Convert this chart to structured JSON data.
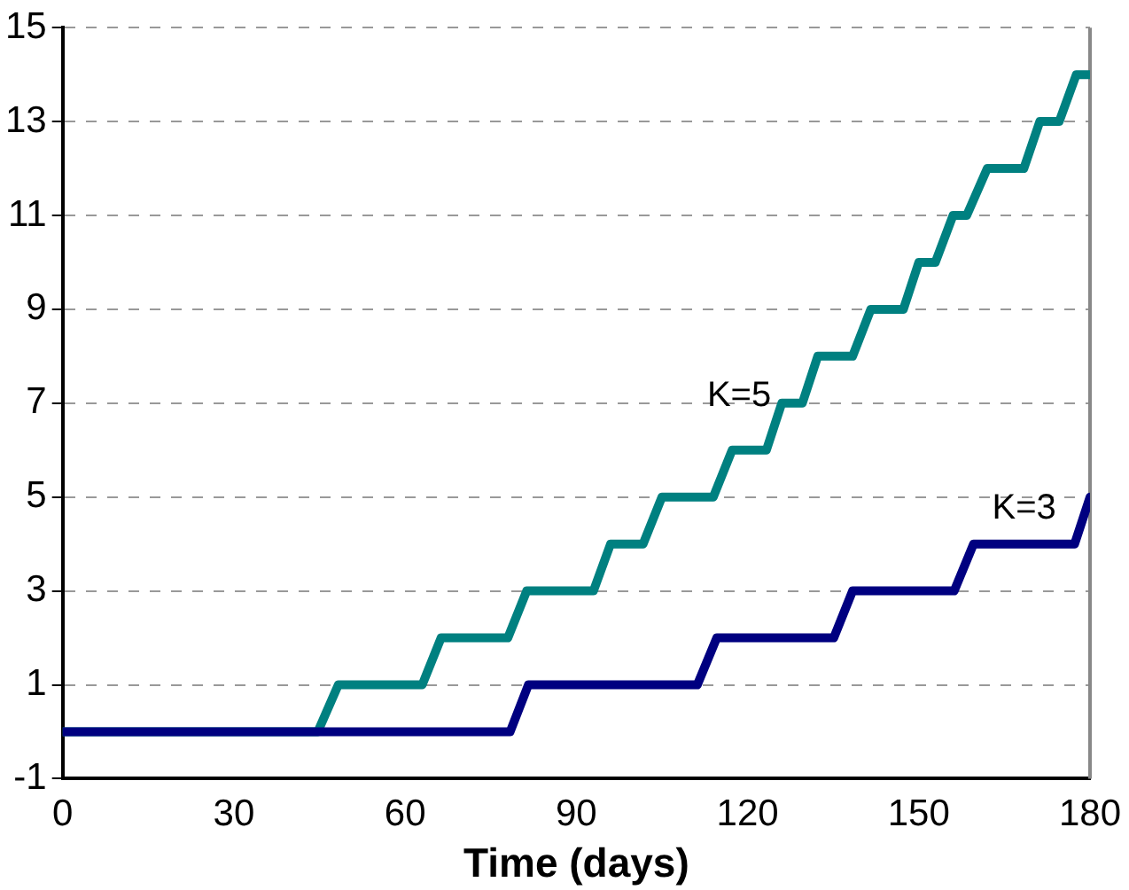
{
  "chart_data": {
    "type": "line",
    "xlabel": "Time (days)",
    "series": [
      {
        "name": "K=3",
        "color": "#000080",
        "x": [
          0,
          75,
          78.4,
          81.6,
          111.2,
          114.6,
          135.1,
          138.4,
          156.2,
          159.6,
          177.3,
          180
        ],
        "values": [
          0,
          0,
          0,
          1,
          1,
          2,
          2,
          3,
          3,
          4,
          4,
          5
        ]
      },
      {
        "name": "K=5",
        "color": "#008080",
        "x": [
          0,
          44.7,
          48.3,
          63,
          66.3,
          78,
          81.3,
          93,
          96,
          101.7,
          105,
          114,
          117.3,
          123.3,
          126,
          129.6,
          132.3,
          138.4,
          141.6,
          147.3,
          150,
          152.9,
          156,
          158.4,
          162,
          168.4,
          171.2,
          174.6,
          177.6,
          180
        ],
        "values": [
          0,
          0,
          1,
          1,
          2,
          2,
          3,
          3,
          4,
          4,
          5,
          5,
          6,
          6,
          7,
          7,
          8,
          8,
          9,
          9,
          10,
          10,
          11,
          11,
          12,
          12,
          13,
          13,
          14,
          14
        ]
      }
    ],
    "xlim": [
      0,
      180
    ],
    "xticks": [
      0,
      30,
      60,
      90,
      120,
      150,
      180
    ],
    "ylim": [
      -1,
      15
    ],
    "yticks": [
      -1,
      1,
      3,
      5,
      7,
      9,
      11,
      13,
      15
    ],
    "grid": "y",
    "legend": false,
    "marker": "none",
    "line_style": "solid"
  }
}
